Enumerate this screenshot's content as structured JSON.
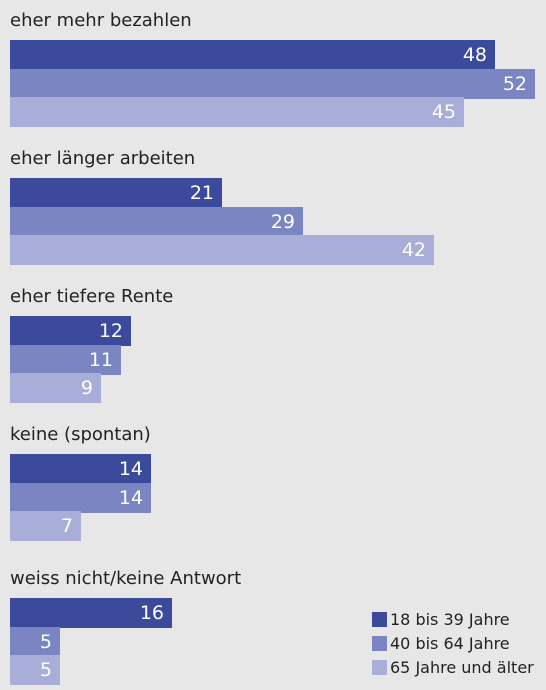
{
  "chart_data": {
    "type": "bar",
    "orientation": "horizontal",
    "categories": [
      "eher mehr bezahlen",
      "eher länger arbeiten",
      "eher tiefere Rente",
      "keine (spontan)",
      "weiss nicht/keine Antwort"
    ],
    "series": [
      {
        "name": "18 bis 39 Jahre",
        "color": "#3c4a9c",
        "values": [
          48,
          21,
          12,
          14,
          16
        ]
      },
      {
        "name": "40 bis 64 Jahre",
        "color": "#7a85c2",
        "values": [
          52,
          29,
          11,
          14,
          5
        ]
      },
      {
        "name": "65 Jahre und älter",
        "color": "#a8aed8",
        "values": [
          45,
          42,
          9,
          7,
          5
        ]
      }
    ],
    "xlim": [
      0,
      52
    ],
    "grid": false,
    "legend_position": "bottom-right"
  }
}
